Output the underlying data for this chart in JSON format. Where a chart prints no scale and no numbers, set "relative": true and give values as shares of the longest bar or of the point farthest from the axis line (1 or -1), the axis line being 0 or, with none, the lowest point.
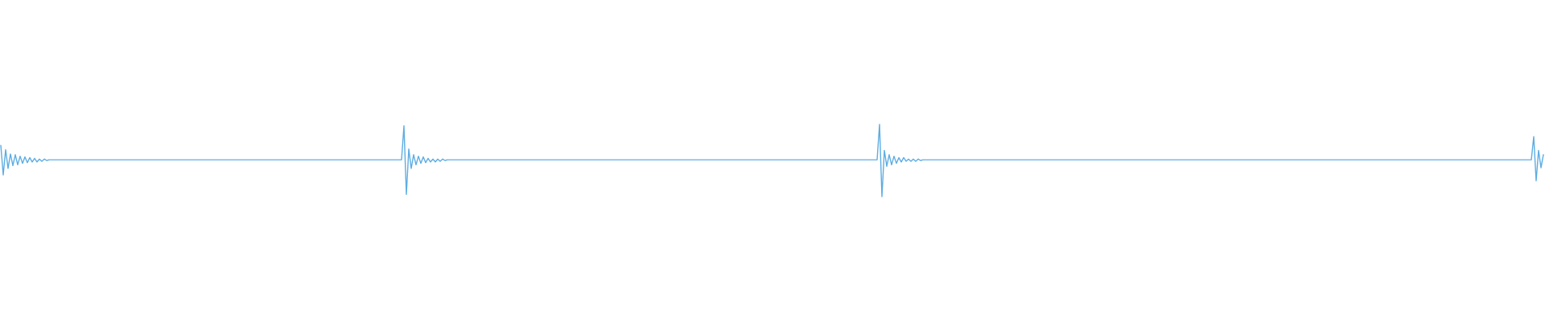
{
  "chart_data": {
    "type": "line",
    "relative": true,
    "tick_labels": false,
    "categories": [
      null,
      null,
      null,
      null,
      null,
      null,
      null,
      null,
      null,
      null,
      null,
      null,
      null,
      null,
      null,
      null,
      null,
      null,
      null,
      null,
      null,
      null,
      null,
      null,
      null,
      null,
      null,
      null,
      null,
      null,
      null,
      null,
      null,
      null,
      null,
      null,
      null,
      null,
      null,
      null,
      null,
      null,
      null,
      null,
      null,
      null,
      null,
      null,
      null,
      null,
      null,
      null,
      null,
      null,
      null,
      null,
      null,
      null,
      null,
      null,
      null,
      null,
      null,
      null,
      null,
      null,
      null,
      null,
      null,
      null,
      null,
      null,
      null,
      null,
      null,
      null,
      null,
      null,
      null,
      null,
      null,
      null,
      null,
      null,
      null,
      null,
      null,
      null,
      null,
      null,
      null,
      null,
      null,
      null,
      null,
      null,
      null,
      null,
      null,
      null,
      null,
      null,
      null,
      null,
      null,
      null,
      null,
      null,
      null,
      null,
      null,
      null,
      null,
      null,
      null,
      null,
      null,
      null,
      null,
      null,
      null,
      null,
      null,
      null,
      null,
      null,
      null,
      null,
      null,
      null,
      null,
      null,
      null,
      null,
      null,
      null,
      null,
      null,
      null,
      null,
      null,
      null,
      null,
      null,
      null,
      null,
      null,
      null,
      null,
      null,
      null,
      null,
      null,
      null,
      null,
      null,
      null,
      null,
      null,
      null,
      null,
      null,
      null,
      null,
      null,
      null,
      null,
      null,
      null,
      null,
      null,
      null,
      null,
      null,
      null,
      null,
      null,
      null,
      null,
      null,
      null,
      null,
      null,
      null,
      null,
      null,
      null,
      null,
      null,
      null,
      null,
      null,
      null,
      null,
      null,
      null,
      null,
      null,
      null,
      null,
      null,
      null,
      null,
      null,
      null,
      null,
      null,
      null,
      null,
      null,
      null,
      null,
      null,
      null,
      null,
      null,
      null,
      null,
      null,
      null,
      null,
      null,
      null,
      null,
      null,
      null,
      null,
      null,
      null,
      null,
      null,
      null,
      null,
      null,
      null,
      null,
      null,
      null,
      null,
      null,
      null,
      null,
      null,
      null,
      null,
      null,
      null,
      null,
      null,
      null,
      null,
      null,
      null,
      null,
      null,
      null,
      null,
      null,
      null,
      null,
      null,
      null,
      null,
      null,
      null,
      null,
      null,
      null,
      null,
      null,
      null,
      null,
      null,
      null,
      null,
      null,
      null,
      null,
      null,
      null,
      null,
      null,
      null,
      null,
      null,
      null,
      null,
      null,
      null,
      null,
      null,
      null,
      null,
      null,
      null,
      null,
      null,
      null,
      null,
      null,
      null,
      null,
      null,
      null,
      null,
      null,
      null,
      null,
      null,
      null,
      null,
      null,
      null,
      null,
      null,
      null,
      null,
      null,
      null,
      null,
      null,
      null,
      null,
      null,
      null,
      null,
      null,
      null,
      null,
      null,
      null,
      null,
      null,
      null,
      null,
      null,
      null,
      null,
      null,
      null,
      null,
      null,
      null,
      null,
      null,
      null,
      null,
      null,
      null,
      null,
      null,
      null,
      null,
      null,
      null,
      null,
      null,
      null,
      null,
      null,
      null,
      null,
      null,
      null,
      null,
      null,
      null,
      null,
      null,
      null,
      null,
      null,
      null,
      null,
      null,
      null,
      null,
      null,
      null,
      null,
      null,
      null,
      null,
      null,
      null,
      null,
      null,
      null,
      null,
      null,
      null,
      null,
      null,
      null,
      null,
      null,
      null,
      null,
      null,
      null,
      null,
      null,
      null,
      null,
      null,
      null,
      null,
      null,
      null,
      null,
      null,
      null,
      null,
      null,
      null,
      null,
      null,
      null,
      null,
      null,
      null,
      null,
      null,
      null,
      null,
      null,
      null,
      null,
      null,
      null,
      null,
      null,
      null,
      null,
      null,
      null,
      null,
      null,
      null,
      null,
      null,
      null,
      null,
      null,
      null,
      null,
      null,
      null,
      null,
      null,
      null,
      null,
      null,
      null,
      null,
      null,
      null,
      null,
      null,
      null,
      null,
      null,
      null,
      null,
      null,
      null,
      null,
      null,
      null,
      null,
      null,
      null,
      null,
      null,
      null,
      null,
      null,
      null,
      null,
      null,
      null,
      null,
      null,
      null,
      null,
      null,
      null,
      null,
      null,
      null,
      null,
      null,
      null,
      null,
      null,
      null,
      null,
      null,
      null,
      null,
      null,
      null,
      null,
      null,
      null,
      null,
      null,
      null,
      null,
      null,
      null,
      null,
      null,
      null,
      null,
      null,
      null,
      null,
      null,
      null,
      null,
      null,
      null,
      null,
      null,
      null,
      null,
      null,
      null,
      null,
      null,
      null,
      null,
      null,
      null,
      null,
      null,
      null,
      null,
      null,
      null,
      null,
      null,
      null,
      null,
      null,
      null,
      null,
      null,
      null,
      null,
      null,
      null,
      null,
      null,
      null,
      null,
      null,
      null,
      null,
      null,
      null,
      null,
      null,
      null,
      null,
      null,
      null,
      null,
      null,
      null,
      null,
      null,
      null,
      null,
      null,
      null,
      null,
      null,
      null,
      null,
      null,
      null,
      null,
      null,
      null,
      null,
      null,
      null,
      null,
      null,
      null,
      null,
      null,
      null,
      null,
      null,
      null,
      null,
      null,
      null,
      null,
      null,
      null,
      null,
      null,
      null,
      null,
      null,
      null,
      null,
      null,
      null,
      null,
      null,
      null,
      null,
      null,
      null,
      null,
      null,
      null,
      null,
      null,
      null,
      null,
      null,
      null,
      null,
      null,
      null,
      null,
      null,
      null,
      null,
      null,
      null,
      null,
      null,
      null
    ],
    "series": [
      {
        "color": "#5dade2",
        "values": [
          0.71,
          0.3,
          0.65,
          0.39,
          0.59,
          0.43,
          0.58,
          0.44,
          0.56,
          0.46,
          0.55,
          0.47,
          0.54,
          0.48,
          0.53,
          0.48,
          0.52,
          0.49,
          0.52,
          0.5,
          0.51,
          0.51,
          0.51,
          0.51,
          0.51,
          0.51,
          0.51,
          0.51,
          0.51,
          0.51,
          0.51,
          0.51,
          0.51,
          0.51,
          0.51,
          0.51,
          0.51,
          0.51,
          0.51,
          0.51,
          0.51,
          0.51,
          0.51,
          0.51,
          0.51,
          0.51,
          0.51,
          0.51,
          0.51,
          0.51,
          0.51,
          0.51,
          0.51,
          0.51,
          0.51,
          0.51,
          0.51,
          0.51,
          0.51,
          0.51,
          0.51,
          0.51,
          0.51,
          0.51,
          0.51,
          0.51,
          0.51,
          0.51,
          0.51,
          0.51,
          0.51,
          0.51,
          0.51,
          0.51,
          0.51,
          0.51,
          0.51,
          0.51,
          0.51,
          0.51,
          0.51,
          0.51,
          0.51,
          0.51,
          0.51,
          0.51,
          0.51,
          0.51,
          0.51,
          0.51,
          0.51,
          0.51,
          0.51,
          0.51,
          0.51,
          0.51,
          0.51,
          0.51,
          0.51,
          0.51,
          0.51,
          0.51,
          0.51,
          0.51,
          0.51,
          0.51,
          0.51,
          0.51,
          0.51,
          0.51,
          0.51,
          0.51,
          0.51,
          0.51,
          0.51,
          0.51,
          0.51,
          0.51,
          0.51,
          0.51,
          0.51,
          0.51,
          0.51,
          0.51,
          0.51,
          0.51,
          0.51,
          0.51,
          0.51,
          0.51,
          0.51,
          0.51,
          0.51,
          0.51,
          0.51,
          0.51,
          0.51,
          0.51,
          0.51,
          0.51,
          0.51,
          0.51,
          0.51,
          0.51,
          0.51,
          0.51,
          0.51,
          0.51,
          0.51,
          0.51,
          0.51,
          0.51,
          0.51,
          0.51,
          0.51,
          0.51,
          0.51,
          0.51,
          0.51,
          0.51,
          0.51,
          0.51,
          0.51,
          0.51,
          0.51,
          0.51,
          0.51,
          0.98,
          0.03,
          0.66,
          0.39,
          0.58,
          0.44,
          0.56,
          0.46,
          0.55,
          0.47,
          0.53,
          0.48,
          0.52,
          0.48,
          0.52,
          0.49,
          0.52,
          0.5,
          0.51,
          0.51,
          0.51,
          0.51,
          0.51,
          0.51,
          0.51,
          0.51,
          0.51,
          0.51,
          0.51,
          0.51,
          0.51,
          0.51,
          0.51,
          0.51,
          0.51,
          0.51,
          0.51,
          0.51,
          0.51,
          0.51,
          0.51,
          0.51,
          0.51,
          0.51,
          0.51,
          0.51,
          0.51,
          0.51,
          0.51,
          0.51,
          0.51,
          0.51,
          0.51,
          0.51,
          0.51,
          0.51,
          0.51,
          0.51,
          0.51,
          0.51,
          0.51,
          0.51,
          0.51,
          0.51,
          0.51,
          0.51,
          0.51,
          0.51,
          0.51,
          0.51,
          0.51,
          0.51,
          0.51,
          0.51,
          0.51,
          0.51,
          0.51,
          0.51,
          0.51,
          0.51,
          0.51,
          0.51,
          0.51,
          0.51,
          0.51,
          0.51,
          0.51,
          0.51,
          0.51,
          0.51,
          0.51,
          0.51,
          0.51,
          0.51,
          0.51,
          0.51,
          0.51,
          0.51,
          0.51,
          0.51,
          0.51,
          0.51,
          0.51,
          0.51,
          0.51,
          0.51,
          0.51,
          0.51,
          0.51,
          0.51,
          0.51,
          0.51,
          0.51,
          0.51,
          0.51,
          0.51,
          0.51,
          0.51,
          0.51,
          0.51,
          0.51,
          0.51,
          0.51,
          0.51,
          0.51,
          0.51,
          0.51,
          0.51,
          0.51,
          0.51,
          0.51,
          0.51,
          0.51,
          0.51,
          0.51,
          0.51,
          0.51,
          0.51,
          0.51,
          0.51,
          0.51,
          0.51,
          0.51,
          0.51,
          0.51,
          0.51,
          0.51,
          0.51,
          0.51,
          0.51,
          0.51,
          0.51,
          0.51,
          0.51,
          0.51,
          0.51,
          0.51,
          0.51,
          0.51,
          0.51,
          0.51,
          0.51,
          0.51,
          0.51,
          0.51,
          0.51,
          0.51,
          0.51,
          0.51,
          0.51,
          0.51,
          0.51,
          0.51,
          0.51,
          0.51,
          0.51,
          0.51,
          0.51,
          0.51,
          0.51,
          0.51,
          0.51,
          0.51,
          0.51,
          0.51,
          0.51,
          0.51,
          0.51,
          0.51,
          0.51,
          0.51,
          0.51,
          0.51,
          0.51,
          0.51,
          0.51,
          0.51,
          1.0,
          0.0,
          0.64,
          0.42,
          0.58,
          0.44,
          0.56,
          0.46,
          0.54,
          0.48,
          0.54,
          0.49,
          0.52,
          0.49,
          0.52,
          0.49,
          0.52,
          0.5,
          0.51,
          0.51,
          0.51,
          0.51,
          0.51,
          0.51,
          0.51,
          0.51,
          0.51,
          0.51,
          0.51,
          0.51,
          0.51,
          0.51,
          0.51,
          0.51,
          0.51,
          0.51,
          0.51,
          0.51,
          0.51,
          0.51,
          0.51,
          0.51,
          0.51,
          0.51,
          0.51,
          0.51,
          0.51,
          0.51,
          0.51,
          0.51,
          0.51,
          0.51,
          0.51,
          0.51,
          0.51,
          0.51,
          0.51,
          0.51,
          0.51,
          0.51,
          0.51,
          0.51,
          0.51,
          0.51,
          0.51,
          0.51,
          0.51,
          0.51,
          0.51,
          0.51,
          0.51,
          0.51,
          0.51,
          0.51,
          0.51,
          0.51,
          0.51,
          0.51,
          0.51,
          0.51,
          0.51,
          0.51,
          0.51,
          0.51,
          0.51,
          0.51,
          0.51,
          0.51,
          0.51,
          0.51,
          0.51,
          0.51,
          0.51,
          0.51,
          0.51,
          0.51,
          0.51,
          0.51,
          0.51,
          0.51,
          0.51,
          0.51,
          0.51,
          0.51,
          0.51,
          0.51,
          0.51,
          0.51,
          0.51,
          0.51,
          0.51,
          0.51,
          0.51,
          0.51,
          0.51,
          0.51,
          0.51,
          0.51,
          0.51,
          0.51,
          0.51,
          0.51,
          0.51,
          0.51,
          0.51,
          0.51,
          0.51,
          0.51,
          0.51,
          0.51,
          0.51,
          0.51,
          0.51,
          0.51,
          0.51,
          0.51,
          0.51,
          0.51,
          0.51,
          0.51,
          0.51,
          0.51,
          0.51,
          0.51,
          0.51,
          0.51,
          0.51,
          0.51,
          0.51,
          0.51,
          0.51,
          0.51,
          0.51,
          0.51,
          0.51,
          0.51,
          0.51,
          0.51,
          0.51,
          0.51,
          0.51,
          0.51,
          0.51,
          0.51,
          0.51,
          0.51,
          0.51,
          0.51,
          0.51,
          0.51,
          0.51,
          0.51,
          0.51,
          0.51,
          0.51,
          0.51,
          0.51,
          0.51,
          0.51,
          0.51,
          0.51,
          0.51,
          0.51,
          0.51,
          0.51,
          0.51,
          0.51,
          0.51,
          0.51,
          0.51,
          0.51,
          0.51,
          0.51,
          0.51,
          0.51,
          0.51,
          0.51,
          0.51,
          0.51,
          0.51,
          0.51,
          0.51,
          0.51,
          0.51,
          0.51,
          0.51,
          0.51,
          0.51,
          0.51,
          0.51,
          0.51,
          0.51,
          0.51,
          0.51,
          0.51,
          0.51,
          0.51,
          0.51,
          0.51,
          0.51,
          0.51,
          0.51,
          0.51,
          0.51,
          0.51,
          0.51,
          0.51,
          0.51,
          0.51,
          0.51,
          0.51,
          0.51,
          0.51,
          0.51,
          0.51,
          0.51,
          0.51,
          0.51,
          0.51,
          0.51,
          0.51,
          0.51,
          0.51,
          0.51,
          0.51,
          0.51,
          0.51,
          0.51,
          0.51,
          0.51,
          0.51,
          0.51,
          0.51,
          0.51,
          0.51,
          0.51,
          0.51,
          0.51,
          0.51,
          0.51,
          0.51,
          0.51,
          0.51,
          0.51,
          0.51,
          0.51,
          0.51,
          0.51,
          0.51,
          0.51,
          0.51,
          0.83,
          0.22,
          0.64,
          0.4,
          0.58
        ]
      }
    ]
  }
}
